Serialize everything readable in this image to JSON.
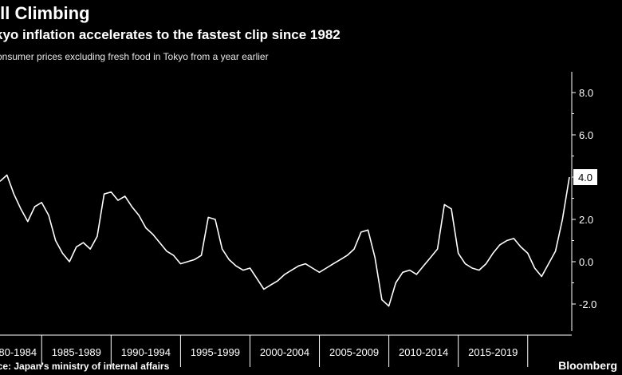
{
  "title": "ill Climbing",
  "subtitle": "kyo inflation accelerates to the fastest clip since 1982",
  "caption": "onsumer prices excluding fresh food in Tokyo from a year earlier",
  "source": "rce: Japan's ministry of internal affairs",
  "brand": "Bloomberg",
  "chart_data": {
    "type": "line",
    "ylim": [
      -3,
      9.5
    ],
    "y_ticks": [
      "8.0",
      "6.0",
      "4.0",
      "2.0",
      "0.0",
      "-2.0"
    ],
    "y_tick_values": [
      8,
      6,
      4,
      2,
      0,
      -2
    ],
    "x_category_labels": [
      "80-1984",
      "1985-1989",
      "1990-1994",
      "1995-1999",
      "2000-2004",
      "2005-2009",
      "2010-2014",
      "2015-2019"
    ],
    "latest_value_label": "4.0",
    "series": [
      {
        "x": [
          1982,
          1982.5,
          1983,
          1983.5,
          1984,
          1984.5,
          1985,
          1985.5,
          1986,
          1986.5,
          1987,
          1987.5,
          1988,
          1988.5,
          1989,
          1989.5,
          1990,
          1990.5,
          1991,
          1991.5,
          1992,
          1992.5,
          1993,
          1993.5,
          1994,
          1994.5,
          1995,
          1995.5,
          1996,
          1996.5,
          1997,
          1997.5,
          1998,
          1998.5,
          1999,
          1999.5,
          2000,
          2000.5,
          2001,
          2001.5,
          2002,
          2002.5,
          2003,
          2003.5,
          2004,
          2004.5,
          2005,
          2005.5,
          2006,
          2006.5,
          2007,
          2007.5,
          2008,
          2008.5,
          2009,
          2009.5,
          2010,
          2010.5,
          2011,
          2011.5,
          2012,
          2012.5,
          2013,
          2013.5,
          2014,
          2014.5,
          2015,
          2015.5,
          2016,
          2016.5,
          2017,
          2017.5,
          2018,
          2018.5,
          2019,
          2019.5,
          2020,
          2020.5,
          2021,
          2021.5,
          2022,
          2022.5,
          2023
        ],
        "values": [
          3.8,
          4.1,
          3.2,
          2.5,
          1.9,
          2.6,
          2.8,
          2.2,
          1.0,
          0.4,
          0.0,
          0.7,
          0.9,
          0.6,
          1.2,
          3.2,
          3.3,
          2.9,
          3.1,
          2.6,
          2.2,
          1.6,
          1.3,
          0.9,
          0.5,
          0.3,
          -0.1,
          0.0,
          0.1,
          0.3,
          2.1,
          2.0,
          0.6,
          0.1,
          -0.2,
          -0.4,
          -0.3,
          -0.8,
          -1.3,
          -1.1,
          -0.9,
          -0.6,
          -0.4,
          -0.2,
          -0.1,
          -0.3,
          -0.5,
          -0.3,
          -0.1,
          0.1,
          0.3,
          0.6,
          1.4,
          1.5,
          0.2,
          -1.8,
          -2.1,
          -1.0,
          -0.5,
          -0.4,
          -0.6,
          -0.2,
          0.2,
          0.6,
          2.7,
          2.5,
          0.4,
          -0.1,
          -0.3,
          -0.4,
          -0.1,
          0.4,
          0.8,
          1.0,
          1.1,
          0.7,
          0.4,
          -0.3,
          -0.7,
          -0.1,
          0.5,
          2.0,
          4.0
        ]
      }
    ],
    "grid": false
  }
}
